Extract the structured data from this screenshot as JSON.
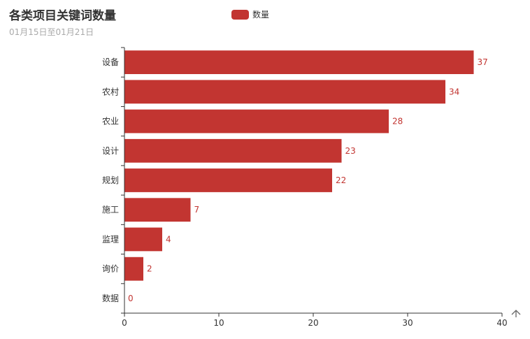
{
  "chart_data": {
    "type": "bar",
    "orientation": "horizontal",
    "title": "各类项目关键词数量",
    "subtitle": "01月15日至01月21日",
    "categories": [
      "设备",
      "农村",
      "农业",
      "设计",
      "规划",
      "施工",
      "监理",
      "询价",
      "数据"
    ],
    "series": [
      {
        "name": "数量",
        "values": [
          37,
          34,
          28,
          23,
          22,
          7,
          4,
          2,
          0
        ],
        "color": "#c23531"
      }
    ],
    "xlim": [
      0,
      40
    ],
    "xticks": [
      "0",
      "10",
      "20",
      "30",
      "40"
    ],
    "grid": false,
    "legend_position": "top-center",
    "data_labels": true
  },
  "toolbox": {
    "icon": "save-as-image-icon"
  }
}
